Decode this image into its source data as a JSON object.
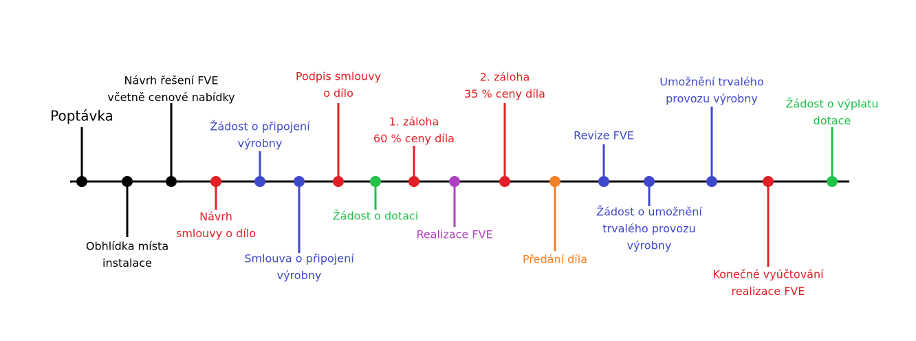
{
  "nodes": [
    {
      "label": [
        "Poptávka"
      ],
      "color": "#000000"
    },
    {
      "label": [
        "Obhlídka místa",
        "instalace"
      ],
      "color": "#000000"
    },
    {
      "label": [
        "Návrh řešení FVE",
        "včetně cenové nabídky"
      ],
      "color": "#000000"
    },
    {
      "label": [
        "Návrh",
        "smlouvy o dílo"
      ],
      "color": "#e21f26"
    },
    {
      "label": [
        "Žádost o připojení",
        "výrobny"
      ],
      "color": "#3f48cc"
    },
    {
      "label": [
        "Smlouva o připojení",
        "výrobny"
      ],
      "color": "#3f48cc"
    },
    {
      "label": [
        "Podpis smlouvy",
        "o dílo"
      ],
      "color": "#e21f26"
    },
    {
      "label": [
        "Žádost o dotaci"
      ],
      "color": "#22c14a"
    },
    {
      "label": [
        "1. záloha",
        "60 % ceny díla"
      ],
      "color": "#e21f26"
    },
    {
      "label": [
        "Realizace FVE"
      ],
      "color": "#b13fc4"
    },
    {
      "label": [
        "2. záloha",
        "35 % ceny díla"
      ],
      "color": "#e21f26"
    },
    {
      "label": [
        "Předání díla"
      ],
      "color": "#f58025"
    },
    {
      "label": [
        "Revize FVE"
      ],
      "color": "#3f48cc"
    },
    {
      "label": [
        "Žádost o umožnění",
        "trvalého provozu",
        "výrobny"
      ],
      "color": "#3f48cc"
    },
    {
      "label": [
        "Umožnění trvalého",
        "provozu výrobny"
      ],
      "color": "#3f48cc"
    },
    {
      "label": [
        "Konečné vyúčtování",
        "realizace FVE"
      ],
      "color": "#e21f26"
    },
    {
      "label": [
        "Žádost o výplatu",
        "dotace"
      ],
      "color": "#22c14a"
    }
  ]
}
